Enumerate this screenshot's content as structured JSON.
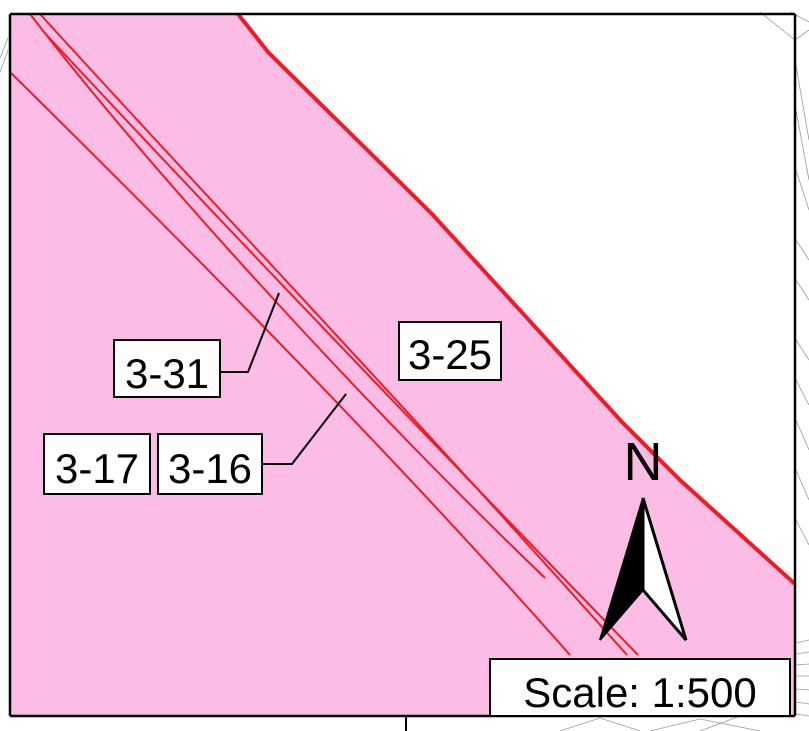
{
  "map": {
    "parcel_labels": [
      {
        "id": "3-31",
        "text": "3-31"
      },
      {
        "id": "3-25",
        "text": "3-25"
      },
      {
        "id": "3-17",
        "text": "3-17"
      },
      {
        "id": "3-16",
        "text": "3-16"
      }
    ],
    "north_arrow_label": "N",
    "scale_text": "Scale: 1:500",
    "colors": {
      "parcel_fill": "#fbbde6",
      "boundary_line": "#ee1c24",
      "frame": "#000000",
      "background_lines": "#9a9a9a"
    }
  }
}
